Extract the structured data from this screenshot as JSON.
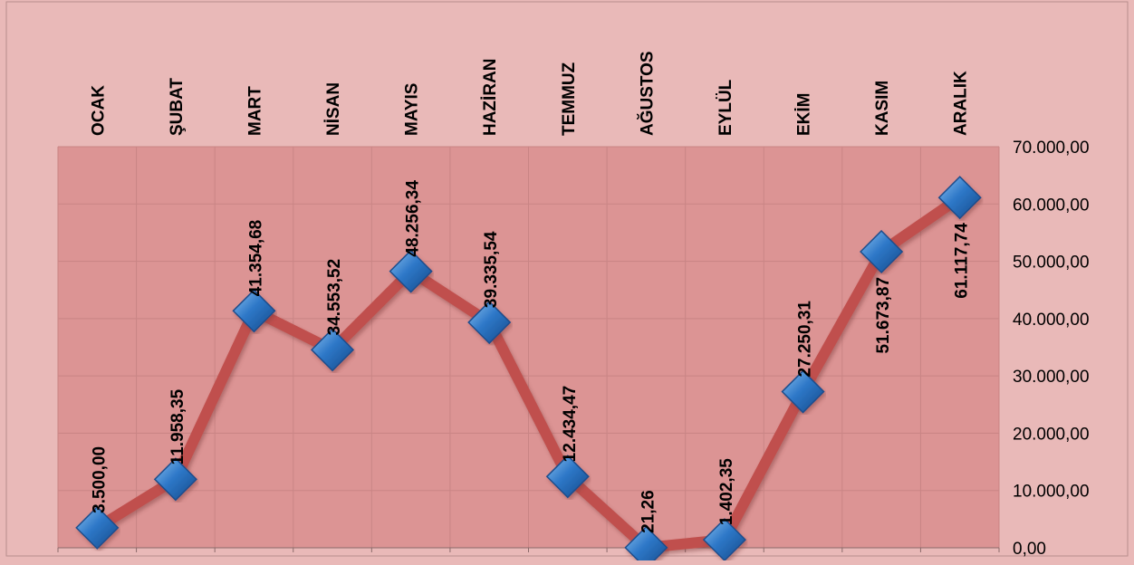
{
  "chart_data": {
    "type": "line",
    "title": "",
    "xlabel": "",
    "ylabel": "",
    "categories": [
      "OCAK",
      "ŞUBAT",
      "MART",
      "NİSAN",
      "MAYIS",
      "HAZİRAN",
      "TEMMUZ",
      "AĞUSTOS",
      "EYLÜL",
      "EKİM",
      "KASIM",
      "ARALIK"
    ],
    "values": [
      3500.0,
      11958.35,
      41354.68,
      34553.52,
      48256.34,
      39335.54,
      12434.47,
      21.26,
      1402.35,
      27250.31,
      51673.87,
      61117.74
    ],
    "value_labels": [
      "3.500,00",
      "11.958,35",
      "41.354,68",
      "34.553,52",
      "48.256,34",
      "39.335,54",
      "12.434,47",
      "21,26",
      "1.402,35",
      "27.250,31",
      "51.673,87",
      "61.117,74"
    ],
    "ylim": [
      0,
      70000
    ],
    "y_ticks": [
      "0,00",
      "10.000,00",
      "20.000,00",
      "30.000,00",
      "40.000,00",
      "50.000,00",
      "60.000,00",
      "70.000,00"
    ],
    "y_axis_position": "right",
    "x_axis_position": "top",
    "grid": true,
    "legend": "none",
    "colors": {
      "background": "#e9b9b8",
      "plot_area": "#dc9494",
      "grid": "#c98585",
      "line": "#c0504d",
      "marker": "#2e78c8",
      "marker_edge": "#1f4e8c",
      "text": "#000000"
    }
  }
}
